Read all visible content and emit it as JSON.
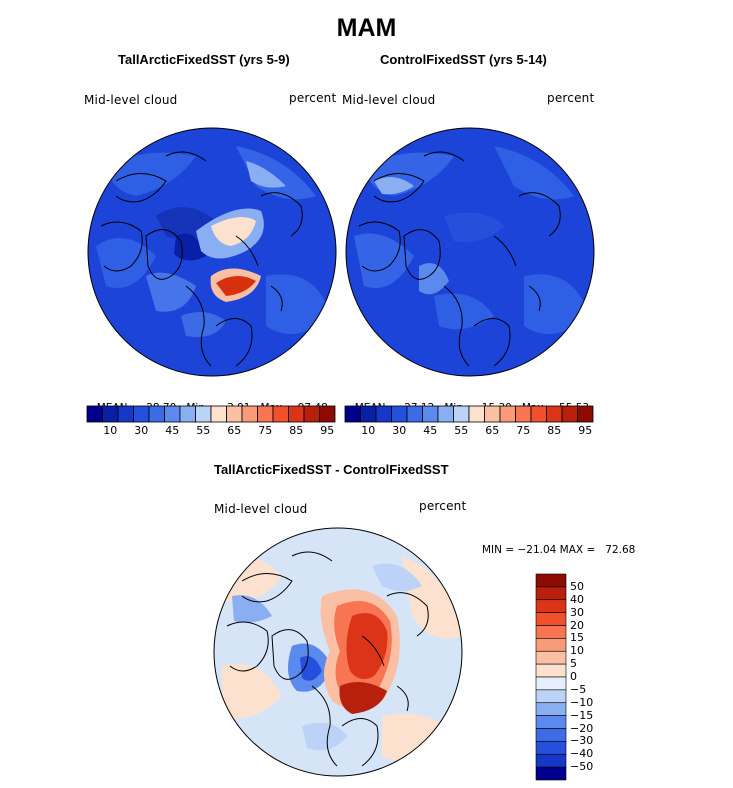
{
  "figure": {
    "title": "MAM"
  },
  "panels": [
    {
      "title": "TallArcticFixedSST (yrs 5-9)",
      "variable_label": "Mid-level cloud",
      "units_label": "percent",
      "stats": {
        "mean_label": "MEAN=",
        "mean": "28.70",
        "min_label": "Min=",
        "min": "3.91",
        "max_label": "Max=",
        "max": "97.48"
      }
    },
    {
      "title": "ControlFixedSST (yrs 5-14)",
      "variable_label": "Mid-level cloud",
      "units_label": "percent",
      "stats": {
        "mean_label": "MEAN=",
        "mean": "27.12",
        "min_label": "Min=",
        "min": "15.30",
        "max_label": "Max=",
        "max": "55.53"
      }
    },
    {
      "title": "TallArcticFixedSST - ControlFixedSST",
      "variable_label": "Mid-level cloud",
      "units_label": "percent",
      "stats_text": "MIN = −21.04 MAX =   72.68"
    }
  ],
  "colorbars": {
    "absolute": {
      "tick_labels": [
        "10",
        "30",
        "45",
        "55",
        "65",
        "75",
        "85",
        "95"
      ],
      "colors": [
        "#00008c",
        "#0a1fa8",
        "#1637c8",
        "#2550dc",
        "#3c6be6",
        "#5a8aee",
        "#8aaef2",
        "#bcd3f7",
        "#fde1cf",
        "#fbbfa3",
        "#f99a79",
        "#f77552",
        "#f0502c",
        "#dc3418",
        "#b81f0c",
        "#8c0c04"
      ]
    },
    "difference": {
      "tick_labels": [
        "50",
        "40",
        "30",
        "20",
        "15",
        "10",
        "5",
        "0",
        "−5",
        "−10",
        "−15",
        "−20",
        "−30",
        "−40",
        "−50"
      ],
      "colors": [
        "#8c0c04",
        "#b81f0c",
        "#dc3418",
        "#f0502c",
        "#f77552",
        "#f99a79",
        "#fbbfa3",
        "#fde1cf",
        "#e6eefb",
        "#bcd3f7",
        "#8aaef2",
        "#5a8aee",
        "#3c6be6",
        "#2550dc",
        "#1637c8",
        "#00008c"
      ]
    }
  },
  "legend_colors": {
    "abs_background": "#1c44d8",
    "diff_background": "#d6e4f8",
    "warm_anomaly": "#d8300f",
    "coastline": "#000000"
  }
}
